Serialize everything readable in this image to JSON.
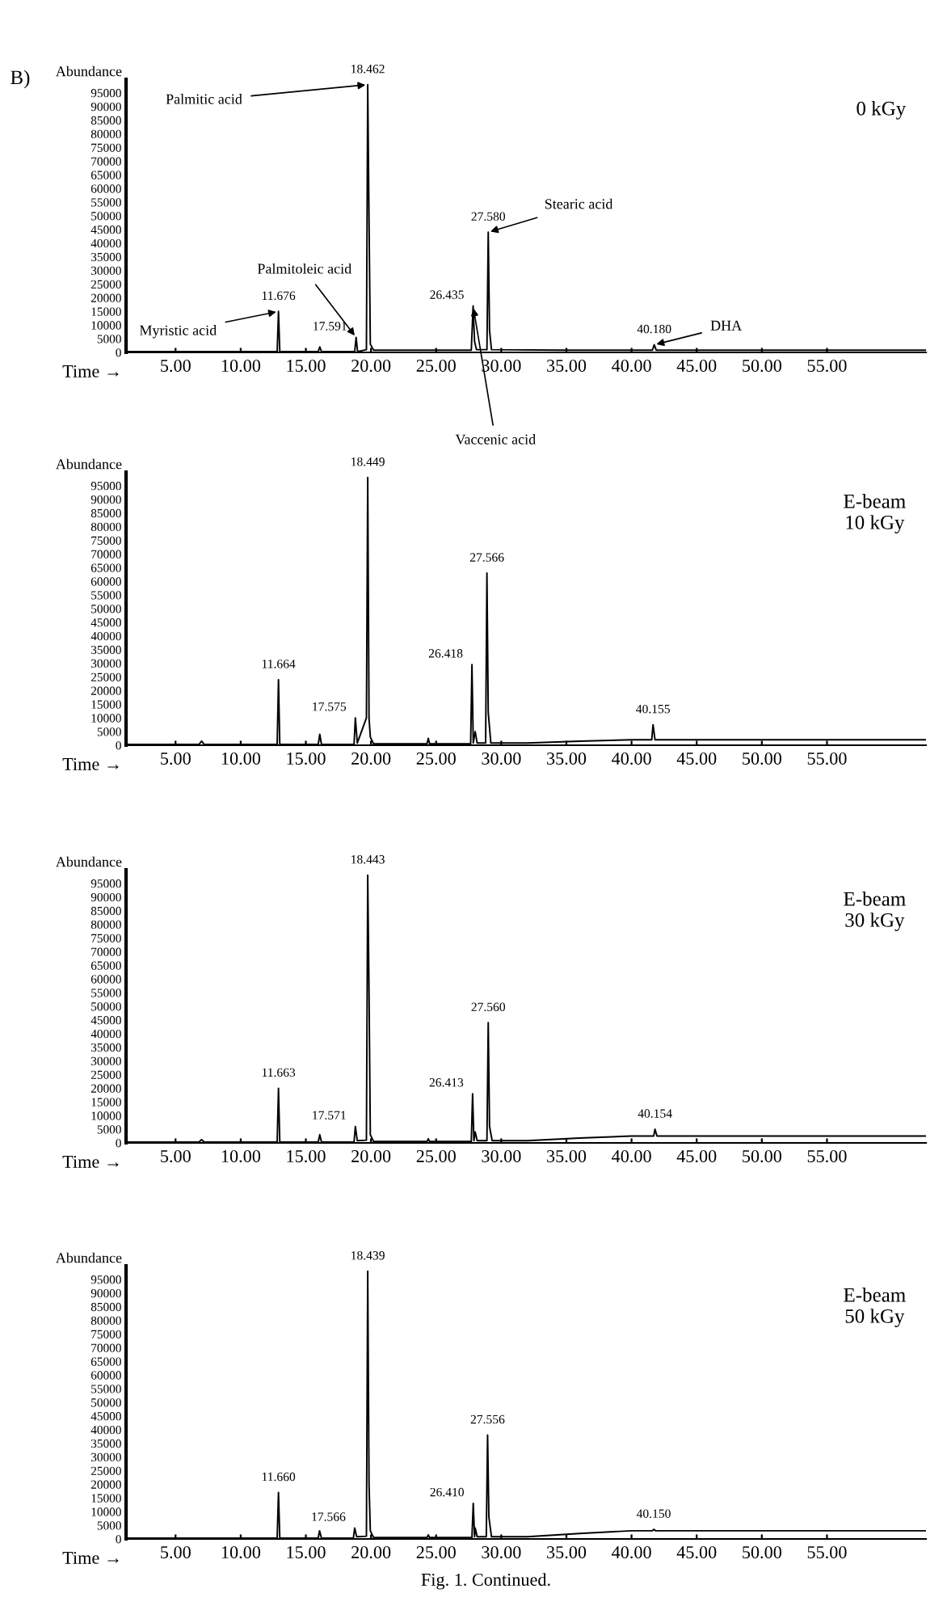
{
  "chart_data": [
    {
      "type": "line",
      "title": "B)",
      "xlabel": "Time →",
      "ylabel": "Abundance",
      "xlim": [
        1.2,
        62.6
      ],
      "ylim": [
        0,
        100000
      ],
      "xticks": [
        {
          "value": 5,
          "label": "5.00"
        },
        {
          "value": 10,
          "label": "10.00"
        },
        {
          "value": 15,
          "label": "15.00"
        },
        {
          "value": 20,
          "label": "20.00"
        },
        {
          "value": 25,
          "label": "25.00"
        },
        {
          "value": 30,
          "label": "30.00"
        },
        {
          "value": 35,
          "label": "35.00"
        },
        {
          "value": 40,
          "label": "40.00"
        },
        {
          "value": 45,
          "label": "45.00"
        },
        {
          "value": 50,
          "label": "50.00"
        },
        {
          "value": 55,
          "label": "55.00"
        }
      ],
      "yticks": [
        0,
        5000,
        10000,
        15000,
        20000,
        25000,
        30000,
        35000,
        40000,
        45000,
        50000,
        55000,
        60000,
        65000,
        70000,
        75000,
        80000,
        85000,
        90000,
        95000
      ],
      "grid": false,
      "legend": false,
      "marker": "none",
      "line_style": "solid",
      "series": [
        {
          "color": "#000000",
          "x": [
            1.3,
            6,
            12.8,
            12.9,
            13.0,
            15.95,
            16.07,
            16.2,
            18.75,
            18.86,
            18.97,
            19.65,
            19.75,
            19.85,
            19.95,
            20.2,
            27.7,
            27.84,
            27.95,
            28.1,
            28.9,
            29.0,
            29.1,
            29.25,
            35,
            41.6,
            41.74,
            41.9,
            50,
            62.6
          ],
          "values": [
            300,
            300,
            300,
            15000,
            300,
            300,
            2000,
            300,
            300,
            5500,
            300,
            1000,
            98000,
            48000,
            3000,
            800,
            800,
            17000,
            4000,
            1000,
            1000,
            44000,
            8000,
            1000,
            800,
            800,
            2800,
            800,
            800,
            800
          ]
        }
      ],
      "annotations": [
        "0 kGy",
        {
          "text": "11.676",
          "x": 12.9,
          "y": 15000
        },
        {
          "text": "17.591",
          "x": 18.86,
          "y": 5500
        },
        {
          "text": "18.462",
          "x": 19.75,
          "y": 98000
        },
        {
          "text": "26.435",
          "x": 27.84,
          "y": 17000
        },
        {
          "text": "27.580",
          "x": 29.0,
          "y": 44000
        },
        {
          "text": "40.180",
          "x": 41.74,
          "y": 2800
        },
        {
          "text": "Palmitic acid",
          "x": 19.75,
          "y": 98000
        },
        {
          "text": "Stearic acid",
          "x": 29.0,
          "y": 44000
        },
        {
          "text": "Palmitoleic acid",
          "x": 18.86,
          "y": 5500
        },
        {
          "text": "Myristic acid",
          "x": 12.9,
          "y": 15000
        },
        {
          "text": "DHA",
          "x": 41.74,
          "y": 2800
        },
        {
          "text": "Vaccenic acid",
          "x": 27.84,
          "y": 17000
        }
      ]
    },
    {
      "type": "line",
      "xlabel": "Time →",
      "ylabel": "Abundance",
      "xlim": [
        1.2,
        62.6
      ],
      "ylim": [
        0,
        100000
      ],
      "xticks": [
        {
          "value": 5,
          "label": "5.00"
        },
        {
          "value": 10,
          "label": "10.00"
        },
        {
          "value": 15,
          "label": "15.00"
        },
        {
          "value": 20,
          "label": "20.00"
        },
        {
          "value": 25,
          "label": "25.00"
        },
        {
          "value": 30,
          "label": "30.00"
        },
        {
          "value": 35,
          "label": "35.00"
        },
        {
          "value": 40,
          "label": "40.00"
        },
        {
          "value": 45,
          "label": "45.00"
        },
        {
          "value": 50,
          "label": "50.00"
        },
        {
          "value": 55,
          "label": "55.00"
        }
      ],
      "yticks": [
        0,
        5000,
        10000,
        15000,
        20000,
        25000,
        30000,
        35000,
        40000,
        45000,
        50000,
        55000,
        60000,
        65000,
        70000,
        75000,
        80000,
        85000,
        90000,
        95000
      ],
      "grid": false,
      "legend": false,
      "marker": "none",
      "line_style": "solid",
      "series": [
        {
          "color": "#000000",
          "x": [
            1.3,
            6.8,
            7.0,
            7.2,
            12.8,
            12.9,
            13.0,
            15.95,
            16.07,
            16.2,
            18.7,
            18.8,
            18.95,
            19.65,
            19.75,
            19.85,
            19.95,
            20.2,
            24.3,
            24.4,
            24.5,
            27.65,
            27.75,
            27.85,
            28.0,
            28.15,
            28.8,
            28.9,
            29.0,
            29.2,
            32,
            36,
            40,
            41.55,
            41.65,
            41.8,
            50,
            62.6
          ],
          "values": [
            300,
            300,
            1500,
            300,
            300,
            24000,
            300,
            300,
            4000,
            300,
            300,
            10000,
            800,
            10000,
            98000,
            10000,
            3000,
            500,
            500,
            2500,
            500,
            500,
            29500,
            800,
            5000,
            800,
            800,
            63000,
            12000,
            800,
            800,
            1500,
            2000,
            2000,
            7500,
            2000,
            2000,
            2000
          ]
        }
      ],
      "annotations": [
        "E-beam\n10 kGy",
        {
          "text": "11.664",
          "x": 12.9,
          "y": 24000
        },
        {
          "text": "17.575",
          "x": 18.8,
          "y": 10000
        },
        {
          "text": "18.449",
          "x": 19.75,
          "y": 98000
        },
        {
          "text": "26.418",
          "x": 27.75,
          "y": 29500
        },
        {
          "text": "27.566",
          "x": 28.9,
          "y": 63000
        },
        {
          "text": "40.155",
          "x": 41.65,
          "y": 7500
        }
      ]
    },
    {
      "type": "line",
      "xlabel": "Time →",
      "ylabel": "Abundance",
      "xlim": [
        1.2,
        62.6
      ],
      "ylim": [
        0,
        100000
      ],
      "xticks": [
        {
          "value": 5,
          "label": "5.00"
        },
        {
          "value": 10,
          "label": "10.00"
        },
        {
          "value": 15,
          "label": "15.00"
        },
        {
          "value": 20,
          "label": "20.00"
        },
        {
          "value": 25,
          "label": "25.00"
        },
        {
          "value": 30,
          "label": "30.00"
        },
        {
          "value": 35,
          "label": "35.00"
        },
        {
          "value": 40,
          "label": "40.00"
        },
        {
          "value": 45,
          "label": "45.00"
        },
        {
          "value": 50,
          "label": "50.00"
        },
        {
          "value": 55,
          "label": "55.00"
        }
      ],
      "yticks": [
        0,
        5000,
        10000,
        15000,
        20000,
        25000,
        30000,
        35000,
        40000,
        45000,
        50000,
        55000,
        60000,
        65000,
        70000,
        75000,
        80000,
        85000,
        90000,
        95000
      ],
      "grid": false,
      "legend": false,
      "marker": "none",
      "line_style": "solid",
      "series": [
        {
          "color": "#000000",
          "x": [
            1.3,
            6.8,
            7.0,
            7.2,
            12.8,
            12.9,
            13.0,
            15.95,
            16.07,
            16.2,
            18.7,
            18.8,
            18.95,
            19.65,
            19.75,
            19.85,
            19.95,
            20.2,
            24.3,
            24.4,
            24.5,
            27.7,
            27.8,
            27.9,
            28.0,
            28.15,
            28.9,
            29.0,
            29.1,
            29.3,
            32,
            36,
            40,
            41.7,
            41.8,
            41.95,
            50,
            62.6
          ],
          "values": [
            300,
            300,
            1200,
            300,
            300,
            20000,
            300,
            300,
            3000,
            300,
            300,
            6000,
            800,
            1000,
            98000,
            55000,
            3000,
            500,
            500,
            1500,
            500,
            500,
            18000,
            800,
            4000,
            800,
            800,
            44000,
            6000,
            800,
            800,
            1800,
            2500,
            2500,
            5000,
            2500,
            2500,
            2500
          ]
        }
      ],
      "annotations": [
        "E-beam\n30 kGy",
        {
          "text": "11.663",
          "x": 12.9,
          "y": 20000
        },
        {
          "text": "17.571",
          "x": 18.8,
          "y": 6000
        },
        {
          "text": "18.443",
          "x": 19.75,
          "y": 98000
        },
        {
          "text": "26.413",
          "x": 27.8,
          "y": 18000
        },
        {
          "text": "27.560",
          "x": 29.0,
          "y": 44000
        },
        {
          "text": "40.154",
          "x": 41.8,
          "y": 5000
        }
      ]
    },
    {
      "type": "line",
      "xlabel": "Time →",
      "ylabel": "Abundance",
      "xlim": [
        1.2,
        62.6
      ],
      "ylim": [
        0,
        100000
      ],
      "xticks": [
        {
          "value": 5,
          "label": "5.00"
        },
        {
          "value": 10,
          "label": "10.00"
        },
        {
          "value": 15,
          "label": "15.00"
        },
        {
          "value": 20,
          "label": "20.00"
        },
        {
          "value": 25,
          "label": "25.00"
        },
        {
          "value": 30,
          "label": "30.00"
        },
        {
          "value": 35,
          "label": "35.00"
        },
        {
          "value": 40,
          "label": "40.00"
        },
        {
          "value": 45,
          "label": "45.00"
        },
        {
          "value": 50,
          "label": "50.00"
        },
        {
          "value": 55,
          "label": "55.00"
        }
      ],
      "yticks": [
        0,
        5000,
        10000,
        15000,
        20000,
        25000,
        30000,
        35000,
        40000,
        45000,
        50000,
        55000,
        60000,
        65000,
        70000,
        75000,
        80000,
        85000,
        90000,
        95000
      ],
      "grid": false,
      "legend": false,
      "marker": "none",
      "line_style": "solid",
      "series": [
        {
          "color": "#000000",
          "x": [
            1.3,
            12.8,
            12.9,
            13.0,
            15.95,
            16.05,
            16.2,
            18.65,
            18.75,
            18.9,
            19.65,
            19.75,
            19.85,
            19.95,
            20.2,
            24.3,
            24.4,
            24.5,
            27.75,
            27.85,
            27.95,
            28.0,
            28.15,
            28.85,
            28.95,
            29.05,
            29.25,
            32,
            36,
            40,
            41.6,
            41.7,
            41.85,
            50,
            62.6
          ],
          "values": [
            300,
            300,
            17000,
            300,
            300,
            3000,
            300,
            300,
            4000,
            800,
            1000,
            98000,
            20000,
            3000,
            500,
            500,
            1500,
            500,
            500,
            13000,
            800,
            4000,
            800,
            800,
            38000,
            8000,
            800,
            800,
            2000,
            3000,
            3000,
            3500,
            3000,
            3000,
            3000
          ]
        }
      ],
      "annotations": [
        "E-beam\n50 kGy",
        {
          "text": "11.660",
          "x": 12.9,
          "y": 17000
        },
        {
          "text": "17.566",
          "x": 18.75,
          "y": 4000
        },
        {
          "text": "18.439",
          "x": 19.75,
          "y": 98000
        },
        {
          "text": "26.410",
          "x": 27.85,
          "y": 13000
        },
        {
          "text": "27.556",
          "x": 28.95,
          "y": 38000
        },
        {
          "text": "40.150",
          "x": 41.7,
          "y": 3500
        },
        "Fig. 1. Continued."
      ]
    }
  ]
}
